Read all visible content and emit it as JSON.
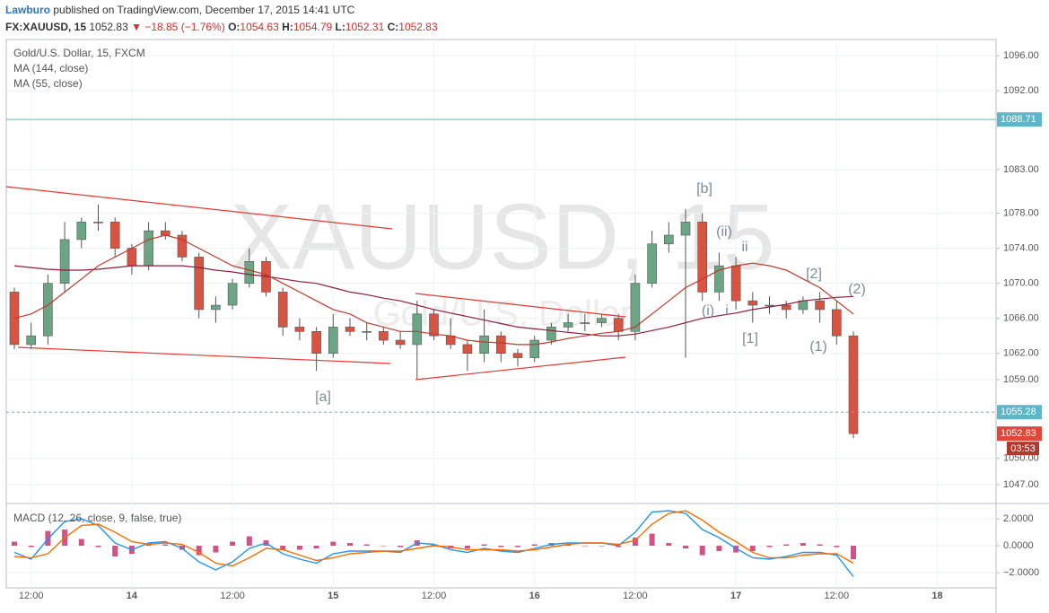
{
  "header": {
    "author": "Lawburo",
    "publish_text": "published on TradingView.com, December 17, 2015 14:41 UTC",
    "symbol": "FX:XAUUSD, 15",
    "last": "1052.83",
    "change": "▼ −18.85 (−1.76%)",
    "ohlc": [
      {
        "label": "O:",
        "value": "1054.63"
      },
      {
        "label": "H:",
        "value": "1054.79"
      },
      {
        "label": "L:",
        "value": "1052.31"
      },
      {
        "label": "C:",
        "value": "1052.83"
      }
    ]
  },
  "chart_data": [
    {
      "type": "candlestick",
      "title": "Gold/U.S. Dollar, 15, FXCM",
      "watermark": "XAUUSD, 15",
      "watermark_sub": "Gold/U.S. Dollar",
      "categories": [
        null,
        "12:00",
        null,
        null,
        null,
        null,
        null,
        "14",
        null,
        null,
        null,
        null,
        null,
        "12:00",
        null,
        null,
        null,
        null,
        null,
        "15",
        null,
        null,
        null,
        null,
        null,
        "12:00",
        null,
        null,
        null,
        null,
        null,
        "16",
        null,
        null,
        null,
        null,
        null,
        "12:00",
        null,
        null,
        null,
        null,
        null,
        "17",
        null,
        null,
        null,
        null,
        null,
        "12:00",
        null,
        null,
        null,
        null,
        null,
        "18"
      ],
      "open": [
        1069,
        1063,
        1064,
        1070,
        1075,
        1077,
        1077,
        1074,
        1072,
        1076,
        1075.5,
        1073,
        1067,
        1067.5,
        1070,
        1072.5,
        1069,
        1065,
        1064.5,
        1062,
        1065,
        1064.5,
        1064.5,
        1063.5,
        1063,
        1066.5,
        1064,
        1063,
        1062,
        1064,
        1062,
        1061.5,
        1063.5,
        1065,
        1065.5,
        1065.5,
        1066,
        1064.5,
        1070,
        1074.5,
        1075.5,
        1077,
        1069,
        1072,
        1068,
        1067.5,
        1067.5,
        1067,
        1068,
        1067,
        1064,
        null,
        null,
        null,
        null,
        null
      ],
      "high": [
        1069.5,
        1065.5,
        1071,
        1077,
        1077.5,
        1079,
        1077.5,
        1074.5,
        1077,
        1077,
        1076,
        1073.5,
        1068.5,
        1070.5,
        1074,
        1073,
        1069.5,
        1066,
        1065,
        1066.5,
        1066,
        1065.5,
        1065,
        1064.5,
        1068,
        1067,
        1066,
        1063.5,
        1067,
        1064.5,
        1062.5,
        1064,
        1065.5,
        1066.5,
        1066.5,
        1066.5,
        1066.5,
        1071,
        1076,
        1077,
        1078.5,
        1078,
        1073.5,
        1073,
        1069,
        1068.5,
        1068,
        1068.5,
        1069,
        1068,
        1064.5,
        null,
        null,
        null,
        null,
        null
      ],
      "low": [
        1062.5,
        1062.5,
        1063,
        1069,
        1074,
        1076,
        1073,
        1071,
        1071.5,
        1075,
        1072.5,
        1066,
        1065.5,
        1067,
        1069.5,
        1068.5,
        1064,
        1063.5,
        1060,
        1061.5,
        1064,
        1063.5,
        1063,
        1062.5,
        1059,
        1063.5,
        1062.5,
        1060,
        1061,
        1061,
        1060.5,
        1061,
        1063,
        1064.5,
        1064.5,
        1065,
        1063.5,
        1063.5,
        1069.5,
        1073.5,
        1061.5,
        1068,
        1068,
        1067,
        1065.5,
        1066.5,
        1066,
        1066.5,
        1065.5,
        1063,
        1052.31,
        null,
        null,
        null,
        null,
        null
      ],
      "close": [
        1063,
        1064,
        1070,
        1075,
        1077,
        1077,
        1074,
        1072,
        1076,
        1075.5,
        1073,
        1067,
        1067.5,
        1070,
        1072.5,
        1069,
        1065,
        1064.5,
        1062,
        1065,
        1064.5,
        1064.5,
        1063.5,
        1063,
        1066.5,
        1064,
        1063,
        1062,
        1064,
        1062,
        1061.5,
        1063.5,
        1065,
        1065.5,
        1065.5,
        1066,
        1064.5,
        1070,
        1074.5,
        1075.5,
        1077,
        1069,
        1072,
        1068,
        1067.5,
        1067.5,
        1067,
        1068,
        1067,
        1064,
        1052.83,
        null,
        null,
        null,
        null,
        null
      ],
      "up_color": "#6ba583",
      "down_color": "#d75442",
      "series": [
        {
          "name": "MA (144, close)",
          "color": "#8e1b3c",
          "values": [
            1072,
            1071.8,
            1071.6,
            1071.5,
            1071.5,
            1071.6,
            1071.8,
            1072,
            1072,
            1072,
            1072,
            1071.8,
            1071.5,
            1071.3,
            1071,
            1070.8,
            1070.5,
            1070.2,
            1070,
            1069.5,
            1069,
            1068.7,
            1068.3,
            1068,
            1067.5,
            1067,
            1066.6,
            1066.2,
            1065.8,
            1065.4,
            1065,
            1064.8,
            1064.6,
            1064.4,
            1064.2,
            1064,
            1064,
            1064.2,
            1064.6,
            1065,
            1065.5,
            1066,
            1066.3,
            1066.6,
            1067,
            1067.3,
            1067.6,
            1068,
            1068.2,
            1068.4,
            1068.5,
            null,
            null,
            null,
            null,
            null
          ]
        },
        {
          "name": "MA (55, close)",
          "color": "#c0392b",
          "values": [
            1066,
            1066.5,
            1067.5,
            1069,
            1070.5,
            1072,
            1073,
            1074,
            1075,
            1075.5,
            1075,
            1074,
            1073,
            1072,
            1071.5,
            1071,
            1070,
            1069,
            1068,
            1067,
            1066.5,
            1065.5,
            1065,
            1064.5,
            1064.5,
            1064.2,
            1064,
            1063.5,
            1063.3,
            1063.2,
            1063,
            1063,
            1063.3,
            1063.7,
            1064,
            1064.3,
            1064.5,
            1065,
            1066.5,
            1068,
            1069.5,
            1070.5,
            1071.5,
            1072,
            1072.3,
            1072,
            1071.5,
            1070.5,
            1069.5,
            1068,
            1066.5,
            null,
            null,
            null,
            null,
            null
          ]
        }
      ],
      "ylim": [
        1044.95,
        1097.85
      ],
      "yticks": [
        {
          "value": 1096,
          "label": "1096.00"
        },
        {
          "value": 1092,
          "label": "1092.00"
        },
        {
          "value": 1083,
          "label": "1083.00"
        },
        {
          "value": 1078,
          "label": "1078.00"
        },
        {
          "value": 1074,
          "label": "1074.00"
        },
        {
          "value": 1070,
          "label": "1070.00"
        },
        {
          "value": 1066,
          "label": "1066.00"
        },
        {
          "value": 1062,
          "label": "1062.00"
        },
        {
          "value": 1059,
          "label": "1059.00"
        },
        {
          "value": 1050,
          "label": "1050.00"
        },
        {
          "value": 1047,
          "label": "1047.00"
        }
      ],
      "grid": true,
      "hlines": [
        {
          "value": 1088.71,
          "color": "#5fb6c9",
          "dashed": false
        },
        {
          "value": 1055.28,
          "color": "#5fb6c9",
          "dashed": true
        }
      ],
      "last_price": {
        "value": 1052.83,
        "color": "#e0483a",
        "countdown": "03:53"
      },
      "annotations": [
        "[a]",
        "[b]",
        "(ii)",
        "ii",
        "(i)",
        "i",
        "[1]",
        "[2]",
        "(1)",
        "(2)"
      ]
    },
    {
      "type": "macd",
      "title": "MACD (12, 26, close, 9, false, true)",
      "series": [
        {
          "style": "histogram",
          "color": "#c2185b",
          "values": [
            0.3,
            -0.1,
            1.1,
            1.2,
            0.5,
            -0.1,
            -0.8,
            -0.6,
            0.1,
            0.1,
            -0.3,
            -0.7,
            -0.5,
            0.3,
            0.7,
            0.4,
            -0.3,
            -0.3,
            -0.2,
            0.3,
            0.2,
            0.1,
            0,
            -0.1,
            0.4,
            0.1,
            -0.2,
            -0.2,
            0.1,
            -0.1,
            -0.1,
            0.1,
            0.2,
            0.1,
            0,
            0,
            -0.1,
            0.6,
            0.9,
            0.2,
            -0.2,
            -0.7,
            -0.4,
            -0.5,
            -0.4,
            -0.1,
            0.1,
            0.2,
            0.1,
            -0.1,
            -1.0,
            null,
            null,
            null,
            null,
            null
          ]
        },
        {
          "style": "line",
          "color": "#2196f3",
          "values": [
            -0.5,
            -1.0,
            0.5,
            1.8,
            2.0,
            1.5,
            0.2,
            -0.3,
            0.2,
            0.3,
            -0.2,
            -1.2,
            -1.8,
            -1.2,
            -0.2,
            0.2,
            -0.6,
            -1.0,
            -1.3,
            -0.6,
            -0.4,
            -0.4,
            -0.4,
            -0.5,
            0.2,
            0.1,
            -0.3,
            -0.5,
            -0.2,
            -0.4,
            -0.5,
            -0.2,
            0.1,
            0.2,
            0.2,
            0.2,
            0.0,
            1.0,
            2.5,
            2.6,
            2.4,
            1.2,
            0.6,
            -0.2,
            -0.9,
            -1.0,
            -0.8,
            -0.5,
            -0.5,
            -0.7,
            -2.3,
            null,
            null,
            null,
            null,
            null
          ]
        },
        {
          "style": "line",
          "color": "#ff6d00",
          "values": [
            -0.8,
            -0.9,
            -0.6,
            0.6,
            1.5,
            1.6,
            1.0,
            0.3,
            0.1,
            0.2,
            0.1,
            -0.5,
            -1.3,
            -1.5,
            -0.9,
            -0.2,
            -0.3,
            -0.7,
            -1.1,
            -0.9,
            -0.6,
            -0.5,
            -0.4,
            -0.4,
            -0.2,
            0.0,
            -0.1,
            -0.3,
            -0.3,
            -0.3,
            -0.4,
            -0.3,
            -0.1,
            0.1,
            0.2,
            0.2,
            0.1,
            0.4,
            1.6,
            2.4,
            2.6,
            1.9,
            1.0,
            0.3,
            -0.5,
            -0.9,
            -0.9,
            -0.7,
            -0.6,
            -0.6,
            -1.3,
            null,
            null,
            null,
            null,
            null
          ]
        }
      ],
      "ylim": [
        -3.13,
        3.07
      ],
      "yticks": [
        {
          "value": 2,
          "label": "2.0000"
        },
        {
          "value": 0,
          "label": "0.0000"
        },
        {
          "value": -2,
          "label": "−2.0000"
        }
      ]
    }
  ]
}
